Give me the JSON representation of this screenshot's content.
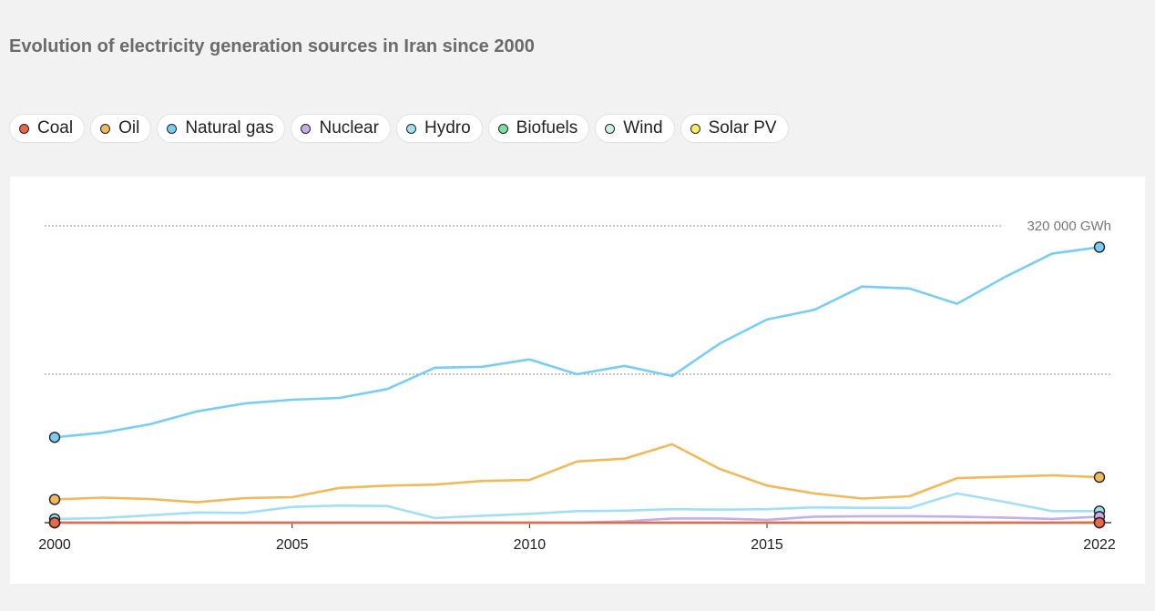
{
  "title": "Evolution of electricity generation sources in Iran since 2000",
  "legend": [
    {
      "label": "Coal",
      "color": "#e8684a"
    },
    {
      "label": "Oil",
      "color": "#f0b95b"
    },
    {
      "label": "Natural gas",
      "color": "#79cdf2"
    },
    {
      "label": "Nuclear",
      "color": "#c8aee8"
    },
    {
      "label": "Hydro",
      "color": "#a3dff2"
    },
    {
      "label": "Biofuels",
      "color": "#7ee0a0"
    },
    {
      "label": "Wind",
      "color": "#c9f1e2"
    },
    {
      "label": "Solar PV",
      "color": "#f7ee5f"
    }
  ],
  "chart_data": {
    "type": "line",
    "title": "Evolution of electricity generation sources in Iran since 2000",
    "unit": "GWh",
    "x": [
      2000,
      2001,
      2002,
      2003,
      2004,
      2005,
      2006,
      2007,
      2008,
      2009,
      2010,
      2011,
      2012,
      2013,
      2014,
      2015,
      2016,
      2017,
      2018,
      2019,
      2020,
      2021,
      2022
    ],
    "xticks": [
      "2000",
      "2005",
      "2010",
      "2015",
      "2022"
    ],
    "ylim": [
      0,
      320000
    ],
    "ygrid": [
      160000,
      320000
    ],
    "ytick_label": "320 000 GWh",
    "series": [
      {
        "name": "Coal",
        "color": "#e8684a",
        "values": [
          0,
          0,
          0,
          0,
          0,
          0,
          0,
          0,
          0,
          0,
          0,
          0,
          0,
          0,
          0,
          0,
          0,
          0,
          0,
          0,
          0,
          0,
          0
        ]
      },
      {
        "name": "Oil",
        "color": "#f0b95b",
        "values": [
          25000,
          27000,
          25500,
          22000,
          26500,
          27500,
          37500,
          40000,
          41000,
          45000,
          46000,
          66000,
          69000,
          84500,
          58000,
          40000,
          31500,
          26000,
          28500,
          48000,
          49500,
          51000,
          49000
        ]
      },
      {
        "name": "Natural gas",
        "color": "#79cdf2",
        "values": [
          92000,
          97000,
          106000,
          120000,
          128500,
          132500,
          134500,
          144000,
          167000,
          168000,
          176000,
          160000,
          169000,
          158000,
          193000,
          219000,
          229500,
          254500,
          252500,
          236000,
          264500,
          290000,
          297000
        ]
      },
      {
        "name": "Nuclear",
        "color": "#c8aee8",
        "values": [
          0,
          0,
          0,
          0,
          0,
          0,
          0,
          0,
          0,
          0,
          0,
          0,
          1500,
          4500,
          4500,
          3000,
          6500,
          7000,
          7000,
          6500,
          5500,
          4000,
          6500
        ]
      },
      {
        "name": "Hydro",
        "color": "#a3dff2",
        "values": [
          4000,
          5000,
          8000,
          11000,
          10500,
          17000,
          18500,
          18000,
          5000,
          7500,
          9500,
          12500,
          13000,
          14500,
          14000,
          14500,
          16500,
          16000,
          16000,
          31500,
          22500,
          12500,
          12500
        ]
      },
      {
        "name": "Biofuels",
        "color": "#7ee0a0",
        "values": [
          0,
          0,
          0,
          0,
          0,
          0,
          0,
          0,
          0,
          0,
          0,
          0,
          0,
          0,
          0,
          0,
          0,
          0,
          0,
          0,
          0,
          0,
          0
        ]
      },
      {
        "name": "Wind",
        "color": "#c9f1e2",
        "values": [
          0,
          0,
          0,
          0,
          0,
          0,
          0,
          0,
          0,
          0,
          0,
          0,
          0,
          0,
          0,
          0,
          0,
          0,
          0,
          0,
          0,
          0,
          0
        ]
      },
      {
        "name": "Solar PV",
        "color": "#f7ee5f",
        "values": [
          0,
          0,
          0,
          0,
          0,
          0,
          0,
          0,
          0,
          0,
          0,
          0,
          0,
          0,
          0,
          0,
          0,
          0,
          0,
          0,
          0,
          0,
          1000
        ]
      }
    ]
  }
}
